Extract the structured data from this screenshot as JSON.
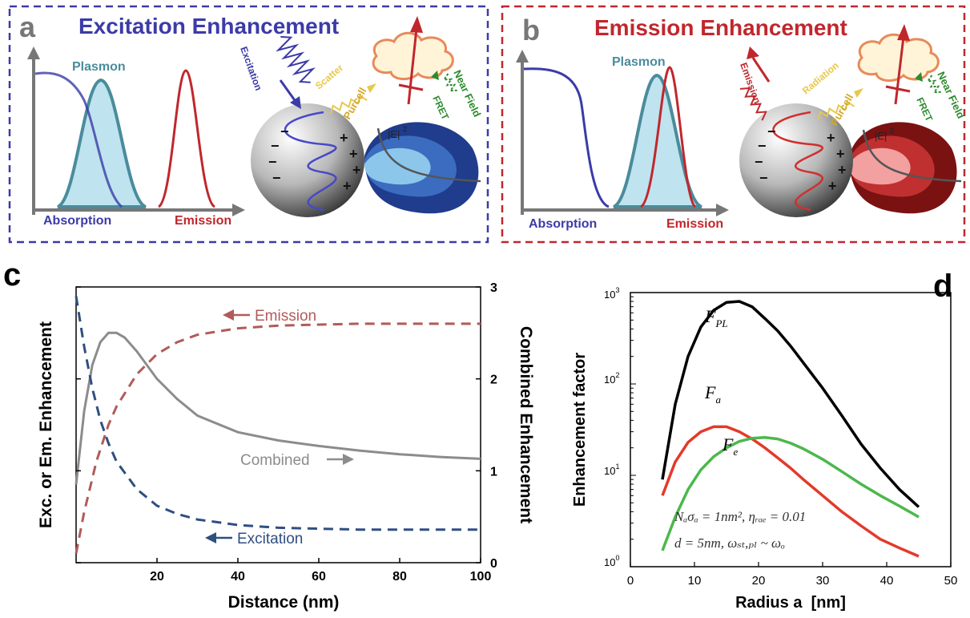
{
  "colors": {
    "excitation_blue": "#3b3ba8",
    "emission_red": "#c0272d",
    "plasmon_teal": "#4a8c9c",
    "purcell_yellow": "#e8c84a",
    "near_field_green": "#2e8b2e",
    "curve_gray": "#8c8c8c",
    "dashed_red": "#b25a5a",
    "dashed_blue": "#2f4f80",
    "fpl_black": "#000000",
    "fa_red": "#e33a2a",
    "fe_green": "#4cb84c"
  },
  "panel_a": {
    "letter": "a",
    "title": "Excitation Enhancement",
    "plasmon": "Plasmon",
    "absorption": "Absorption",
    "emission": "Emission",
    "excitation": "Excitation",
    "scatter": "Scatter",
    "purcell": "Purcell",
    "near_field": "Near Field",
    "fret": "FRET",
    "field_label": "|E|",
    "field_exp": "2"
  },
  "panel_b": {
    "letter": "b",
    "title": "Emission Enhancement",
    "plasmon": "Plasmon",
    "absorption": "Absorption",
    "emission": "Emission",
    "emission_arrow": "Emission",
    "radiation": "Radiation",
    "purcell": "Purcell",
    "near_field": "Near Field",
    "fret": "FRET",
    "field_label": "|E|",
    "field_exp": "2"
  },
  "chart_data": [
    {
      "type": "line",
      "panel": "c",
      "xlabel": "Distance (nm)",
      "ylabel": "Exc. or Em. Enhancement",
      "y2label": "Combined Enhancement",
      "xlim": [
        0,
        100
      ],
      "y2lim": [
        0,
        3
      ],
      "x_ticks": [
        "20",
        "40",
        "60",
        "80",
        "100"
      ],
      "y2_ticks": [
        "0",
        "1",
        "2",
        "3"
      ],
      "annotations": {
        "emission": "Emission",
        "combined": "Combined",
        "excitation": "Excitation"
      },
      "series": [
        {
          "id": "combined",
          "style": "solid",
          "axis": "right",
          "x": [
            0,
            2,
            4,
            6,
            8,
            10,
            12,
            15,
            20,
            25,
            30,
            40,
            50,
            60,
            70,
            80,
            90,
            100
          ],
          "y": [
            0.85,
            1.65,
            2.15,
            2.4,
            2.5,
            2.5,
            2.45,
            2.3,
            2.0,
            1.78,
            1.6,
            1.42,
            1.33,
            1.27,
            1.22,
            1.18,
            1.15,
            1.13
          ]
        },
        {
          "id": "emission",
          "style": "dashed",
          "axis": "right",
          "x": [
            0,
            2,
            5,
            8,
            10,
            15,
            20,
            25,
            30,
            40,
            50,
            60,
            70,
            80,
            90,
            100
          ],
          "y": [
            0.1,
            0.55,
            1.1,
            1.5,
            1.7,
            2.05,
            2.27,
            2.4,
            2.48,
            2.55,
            2.58,
            2.59,
            2.6,
            2.6,
            2.6,
            2.6
          ]
        },
        {
          "id": "excitation",
          "style": "dashed",
          "axis": "right",
          "x": [
            0,
            2,
            4,
            6,
            8,
            10,
            15,
            20,
            25,
            30,
            40,
            50,
            60,
            70,
            80,
            90,
            100
          ],
          "y": [
            2.9,
            2.35,
            1.9,
            1.55,
            1.3,
            1.1,
            0.8,
            0.62,
            0.53,
            0.47,
            0.41,
            0.38,
            0.37,
            0.36,
            0.36,
            0.36,
            0.36
          ]
        }
      ]
    },
    {
      "type": "line",
      "panel": "d",
      "xlabel": "Radius a  [nm]",
      "ylabel": "Enhancement factor",
      "xlim": [
        0,
        50
      ],
      "ylim": [
        1,
        1000
      ],
      "log_y": true,
      "x_ticks": [
        "0",
        "10",
        "20",
        "30",
        "40",
        "50"
      ],
      "equation_1": "Nₐσₐ = 1nm², ηᵣₐₑ = 0.01",
      "equation_2": "d = 5nm, ωₛₜ,ₚₗ ~ ωₒ",
      "series": [
        {
          "id": "F_PL",
          "label": "F",
          "sub": "PL",
          "x": [
            5,
            7,
            9,
            11,
            13,
            15,
            17,
            19,
            21,
            23,
            25,
            27,
            30,
            33,
            36,
            39,
            42,
            45
          ],
          "y": [
            9,
            60,
            200,
            420,
            640,
            780,
            800,
            700,
            520,
            380,
            260,
            170,
            90,
            45,
            22,
            12,
            7,
            4.5
          ]
        },
        {
          "id": "F_a",
          "label": "F",
          "sub": "a",
          "x": [
            5,
            7,
            9,
            11,
            13,
            15,
            17,
            19,
            21,
            23,
            25,
            27,
            30,
            33,
            36,
            39,
            42,
            45
          ],
          "y": [
            6,
            14,
            23,
            30,
            34,
            34,
            30,
            25,
            20,
            15.5,
            12,
            9,
            6,
            4,
            2.8,
            2.0,
            1.6,
            1.3
          ]
        },
        {
          "id": "F_e",
          "label": "F",
          "sub": "e",
          "x": [
            5,
            7,
            9,
            11,
            13,
            15,
            17,
            19,
            21,
            23,
            25,
            27,
            30,
            33,
            36,
            39,
            42,
            45
          ],
          "y": [
            1.5,
            3.5,
            7,
            11.5,
            16,
            20,
            23.5,
            25.5,
            26,
            25,
            22.5,
            19.5,
            15,
            11,
            8,
            6,
            4.6,
            3.5
          ]
        }
      ]
    }
  ],
  "panel_c": {
    "letter": "c"
  },
  "panel_d": {
    "letter": "d",
    "y_ticks": {
      "t0": "10",
      "t0e": "0",
      "t1": "10",
      "t1e": "1",
      "t2": "10",
      "t2e": "2",
      "t3": "10",
      "t3e": "3"
    }
  }
}
